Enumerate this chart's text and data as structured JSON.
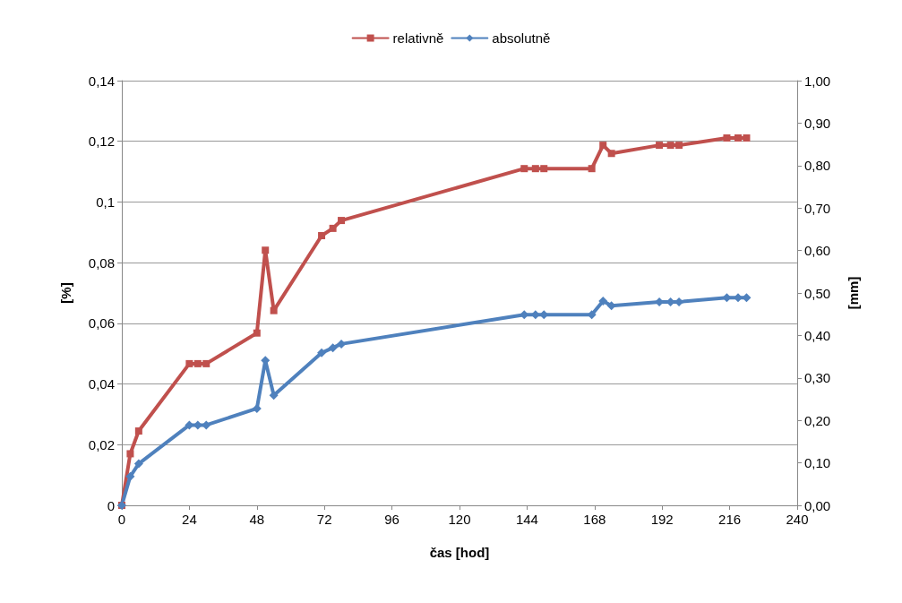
{
  "chart_data": {
    "type": "line",
    "xlabel": "čas [hod]",
    "ylabel": "[%]",
    "y2label": "[mm]",
    "legend": "top",
    "grid": "y",
    "line_style": "solid",
    "x": [
      0,
      3,
      6,
      24,
      27,
      30,
      48,
      51,
      54,
      71,
      75,
      78,
      143,
      147,
      150,
      167,
      171,
      174,
      191,
      195,
      198,
      215,
      219,
      222
    ],
    "xlim": [
      0,
      240
    ],
    "xticks": [
      0,
      24,
      48,
      72,
      96,
      120,
      144,
      168,
      192,
      216,
      240
    ],
    "ylim": [
      0,
      0.14
    ],
    "yticks": [
      0,
      {
        "value": 0.02,
        "label": "0,02"
      },
      {
        "value": 0.04,
        "label": "0,04"
      },
      {
        "value": 0.06,
        "label": "0,06"
      },
      {
        "value": 0.08,
        "label": "0,08"
      },
      {
        "value": 0.1,
        "label": "0,1"
      },
      {
        "value": 0.12,
        "label": "0,12"
      },
      {
        "value": 0.14,
        "label": "0,14"
      }
    ],
    "y2lim": [
      0,
      1
    ],
    "y2ticks": [
      {
        "value": 0,
        "label": "0,00"
      },
      {
        "value": 0.1,
        "label": "0,10"
      },
      {
        "value": 0.2,
        "label": "0,20"
      },
      {
        "value": 0.3,
        "label": "0,30"
      },
      {
        "value": 0.4,
        "label": "0,40"
      },
      {
        "value": 0.5,
        "label": "0,50"
      },
      {
        "value": 0.6,
        "label": "0,60"
      },
      {
        "value": 0.7,
        "label": "0,70"
      },
      {
        "value": 0.8,
        "label": "0,80"
      },
      {
        "value": 0.9,
        "label": "0,90"
      },
      {
        "value": 1,
        "label": "1,00"
      }
    ],
    "series": [
      {
        "name": "relativně",
        "color": "#c0504d",
        "marker": "square",
        "values": [
          0,
          0.017,
          0.0245,
          0.0467,
          0.0467,
          0.0467,
          0.0568,
          0.0841,
          0.0642,
          0.0889,
          0.0913,
          0.0939,
          0.111,
          0.111,
          0.111,
          0.111,
          0.1187,
          0.116,
          0.1187,
          0.1187,
          0.1187,
          0.1211,
          0.1211,
          0.1211
        ]
      },
      {
        "name": "absolutně",
        "color": "#4f81bd",
        "marker": "diamond",
        "axis": "y2",
        "values": [
          0,
          0.068,
          0.098,
          0.189,
          0.189,
          0.189,
          0.228,
          0.341,
          0.259,
          0.359,
          0.371,
          0.38,
          0.449,
          0.449,
          0.449,
          0.449,
          0.481,
          0.47,
          0.479,
          0.479,
          0.479,
          0.489,
          0.489,
          0.489
        ]
      }
    ]
  }
}
